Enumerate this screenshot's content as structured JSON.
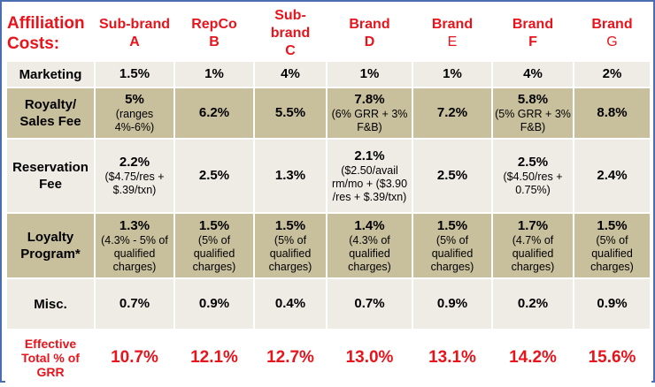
{
  "header": {
    "title_line1": "Affiliation",
    "title_line2": "Costs:",
    "columns": [
      {
        "line1": "Sub-brand",
        "line2": "A",
        "bold2": true
      },
      {
        "line1": "RepCo",
        "line2": "B",
        "bold2": true
      },
      {
        "line1": "Sub-brand",
        "line2": "C",
        "bold2": true
      },
      {
        "line1": "Brand",
        "line2": "D",
        "bold2": true
      },
      {
        "line1": "Brand",
        "line2": "E",
        "bold2": false
      },
      {
        "line1": "Brand",
        "line2": "F",
        "bold2": true
      },
      {
        "line1": "Brand",
        "line2": "G",
        "bold2": false
      }
    ]
  },
  "rows": [
    {
      "label": "Marketing",
      "style": "light",
      "cells": [
        {
          "main": "1.5%",
          "note": ""
        },
        {
          "main": "1%",
          "note": ""
        },
        {
          "main": "4%",
          "note": ""
        },
        {
          "main": "1%",
          "note": ""
        },
        {
          "main": "1%",
          "note": ""
        },
        {
          "main": "4%",
          "note": ""
        },
        {
          "main": "2%",
          "note": ""
        }
      ]
    },
    {
      "label": "Royalty/ Sales Fee",
      "style": "dark",
      "cells": [
        {
          "main": "5%",
          "note": "(ranges 4%-6%)"
        },
        {
          "main": "6.2%",
          "note": ""
        },
        {
          "main": "5.5%",
          "note": ""
        },
        {
          "main": "7.8%",
          "note": "(6% GRR + 3% F&B)"
        },
        {
          "main": "7.2%",
          "note": ""
        },
        {
          "main": "5.8%",
          "note": "(5% GRR + 3% F&B)"
        },
        {
          "main": "8.8%",
          "note": ""
        }
      ]
    },
    {
      "label": "Reservation Fee",
      "style": "light",
      "cells": [
        {
          "main": "2.2%",
          "note": "($4.75/res + $.39/txn)"
        },
        {
          "main": "2.5%",
          "note": ""
        },
        {
          "main": "1.3%",
          "note": ""
        },
        {
          "main": "2.1%",
          "note": "($2.50/avail rm/mo + ($3.90 /res + $.39/txn)"
        },
        {
          "main": "2.5%",
          "note": ""
        },
        {
          "main": "2.5%",
          "note": "($4.50/res + 0.75%)"
        },
        {
          "main": "2.4%",
          "note": ""
        }
      ]
    },
    {
      "label": "Loyalty Program*",
      "style": "dark",
      "cells": [
        {
          "main": "1.3%",
          "note": "(4.3% - 5% of qualified charges)"
        },
        {
          "main": "1.5%",
          "note": "(5% of qualified charges)"
        },
        {
          "main": "1.5%",
          "note": "(5% of qualified charges)"
        },
        {
          "main": "1.4%",
          "note": "(4.3% of qualified charges)"
        },
        {
          "main": "1.5%",
          "note": "(5% of qualified charges)"
        },
        {
          "main": "1.7%",
          "note": "(4.7% of qualified charges)"
        },
        {
          "main": "1.5%",
          "note": "(5% of qualified charges)"
        }
      ]
    },
    {
      "label": "Misc.",
      "style": "light",
      "cells": [
        {
          "main": "0.7%",
          "note": ""
        },
        {
          "main": "0.9%",
          "note": ""
        },
        {
          "main": "0.4%",
          "note": ""
        },
        {
          "main": "0.7%",
          "note": ""
        },
        {
          "main": "0.9%",
          "note": ""
        },
        {
          "main": "0.2%",
          "note": ""
        },
        {
          "main": "0.9%",
          "note": ""
        }
      ]
    }
  ],
  "total": {
    "label": "Effective Total % of GRR",
    "values": [
      "10.7%",
      "12.1%",
      "12.7%",
      "13.0%",
      "13.1%",
      "14.2%",
      "15.6%"
    ]
  },
  "colors": {
    "header_red": "#e8141c",
    "light_row": "#efece6",
    "dark_row": "#c8bf9c",
    "frame_border": "#4a6fb0"
  }
}
